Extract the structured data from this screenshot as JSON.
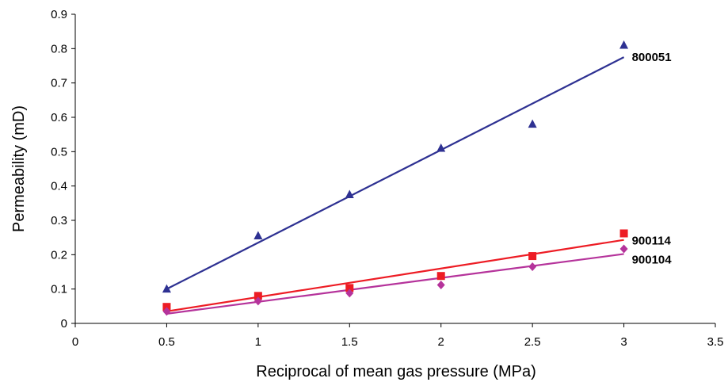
{
  "chart_data": {
    "type": "scatter",
    "title": "",
    "xlabel": "Reciprocal of mean gas pressure (MPa)",
    "ylabel": "Permeability (mD)",
    "xlim": [
      0,
      3.5
    ],
    "ylim": [
      0,
      0.9
    ],
    "x_ticks": [
      "0",
      "0.5",
      "1",
      "1.5",
      "2",
      "2.5",
      "3",
      "3.5"
    ],
    "y_ticks": [
      "0",
      "0.1",
      "0.2",
      "0.3",
      "0.4",
      "0.5",
      "0.6",
      "0.7",
      "0.8",
      "0.9"
    ],
    "grid": false,
    "legend": "none",
    "series": [
      {
        "name": "800051",
        "marker": "triangle",
        "color": "#2E3192",
        "points": [
          [
            0.5,
            0.1
          ],
          [
            1,
            0.255
          ],
          [
            1.5,
            0.375
          ],
          [
            2,
            0.51
          ],
          [
            2.5,
            0.58
          ],
          [
            3,
            0.81
          ]
        ],
        "trendline": [
          [
            0.5,
            0.1
          ],
          [
            3,
            0.775
          ]
        ]
      },
      {
        "name": "900114",
        "marker": "square",
        "color": "#ED1C24",
        "points": [
          [
            0.5,
            0.048
          ],
          [
            1,
            0.08
          ],
          [
            1.5,
            0.103
          ],
          [
            2,
            0.138
          ],
          [
            2.5,
            0.196
          ],
          [
            3,
            0.262
          ]
        ],
        "trendline": [
          [
            0.5,
            0.035
          ],
          [
            3,
            0.243
          ]
        ]
      },
      {
        "name": "900104",
        "marker": "diamond",
        "color": "#B5339B",
        "points": [
          [
            0.5,
            0.035
          ],
          [
            1,
            0.065
          ],
          [
            1.5,
            0.088
          ],
          [
            2,
            0.112
          ],
          [
            2.5,
            0.165
          ],
          [
            3,
            0.217
          ]
        ],
        "trendline": [
          [
            0.5,
            0.028
          ],
          [
            3,
            0.202
          ]
        ]
      }
    ]
  }
}
